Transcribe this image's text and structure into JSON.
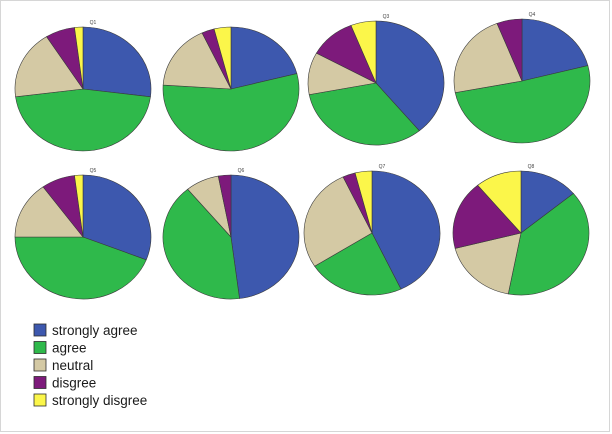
{
  "colors": {
    "strongly_agree": "#3d58ae",
    "agree": "#2fb94b",
    "neutral": "#d4c9a4",
    "disgree": "#7d1a7b",
    "strongly_disgree": "#fbf64a"
  },
  "chart_data": {
    "type": "pie",
    "categories": [
      "strongly agree",
      "agree",
      "neutral",
      "disgree",
      "strongly disgree"
    ],
    "legend_position": "bottom-left",
    "series": [
      {
        "title": "Q1",
        "values": [
          27,
          46,
          18,
          7,
          2
        ]
      },
      {
        "title": "",
        "values": [
          21,
          55,
          17,
          3,
          4
        ]
      },
      {
        "title": "Q3",
        "values": [
          39,
          33,
          11,
          11,
          6
        ]
      },
      {
        "title": "Q4",
        "values": [
          21,
          51,
          22,
          6,
          0
        ]
      },
      {
        "title": "Q5",
        "values": [
          31,
          44,
          15,
          8,
          2
        ]
      },
      {
        "title": "Q6",
        "values": [
          48,
          41,
          8,
          3,
          0
        ]
      },
      {
        "title": "Q7",
        "values": [
          43,
          23,
          27,
          3,
          4
        ]
      },
      {
        "title": "Q8",
        "values": [
          14,
          39,
          18,
          18,
          11
        ]
      }
    ]
  }
}
